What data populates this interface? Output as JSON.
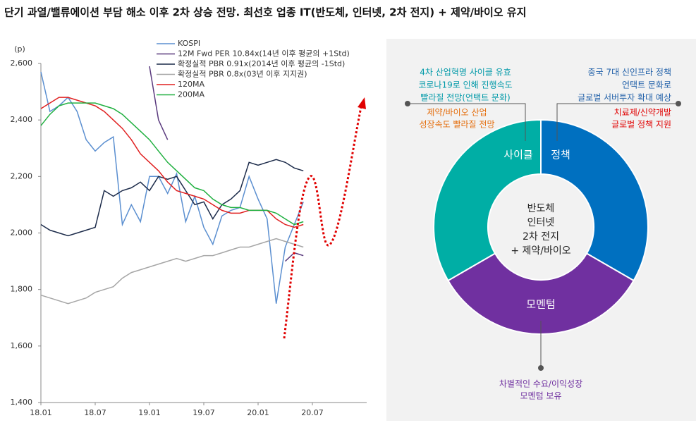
{
  "title": "단기 과열/밸류에이션 부담 해소 이후 2차 상승 전망. 최선호 업종 IT(반도체, 인터넷, 2차 전지) + 제약/바이오 유지",
  "chart_data": {
    "type": "line",
    "y_unit": "(p)",
    "x": [
      "18.01",
      "18.02",
      "18.03",
      "18.04",
      "18.05",
      "18.06",
      "18.07",
      "18.08",
      "18.09",
      "18.10",
      "18.11",
      "18.12",
      "19.01",
      "19.02",
      "19.03",
      "19.04",
      "19.05",
      "19.06",
      "19.07",
      "19.08",
      "19.09",
      "19.10",
      "19.11",
      "19.12",
      "20.01",
      "20.02",
      "20.03",
      "20.04",
      "20.05",
      "20.06",
      "20.07",
      "20.08",
      "20.09",
      "20.10",
      "20.11",
      "20.12",
      "21.01"
    ],
    "xticks": [
      "18.01",
      "18.07",
      "19.01",
      "19.07",
      "20.01",
      "20.07"
    ],
    "ylim": [
      1400,
      2600
    ],
    "yticks": [
      {
        "value": 1400,
        "label": "1,400"
      },
      {
        "value": 1600,
        "label": "1,600"
      },
      {
        "value": 1800,
        "label": "1,800"
      },
      {
        "value": 2000,
        "label": "2,000"
      },
      {
        "value": 2200,
        "label": "2,200"
      },
      {
        "value": 2400,
        "label": "2,400"
      },
      {
        "value": 2600,
        "label": "2,600"
      }
    ],
    "series": [
      {
        "name": "KOSPI",
        "color": "#5b8fd0",
        "values": [
          2570,
          2430,
          2450,
          2480,
          2430,
          2330,
          2290,
          2320,
          2340,
          2030,
          2100,
          2040,
          2200,
          2200,
          2140,
          2210,
          2040,
          2130,
          2020,
          1960,
          2060,
          2080,
          2090,
          2200,
          2120,
          2050,
          1750,
          1950,
          2030,
          2110,
          null,
          null,
          null,
          null,
          null,
          null,
          null
        ]
      },
      {
        "name": "12M Fwd PER 10.84x(14년 이후 평균의 +1Std)",
        "color": "#5a3a7e",
        "values": [
          null,
          null,
          null,
          null,
          null,
          null,
          null,
          null,
          null,
          null,
          null,
          null,
          2590,
          2400,
          2330,
          null,
          null,
          null,
          null,
          null,
          null,
          null,
          null,
          null,
          null,
          null,
          null,
          1900,
          1930,
          1920,
          null,
          null,
          null,
          null,
          null,
          null,
          null
        ]
      },
      {
        "name": "확정실적 PBR 0.91x(2014년 이후 평균의 -1Std)",
        "color": "#1c2b4a",
        "values": [
          2030,
          2010,
          2000,
          1990,
          2000,
          2010,
          2020,
          2150,
          2130,
          2150,
          2160,
          2180,
          2150,
          2200,
          2190,
          2200,
          2150,
          2100,
          2110,
          2050,
          2100,
          2120,
          2150,
          2250,
          2240,
          2250,
          2260,
          2250,
          2230,
          2220,
          null,
          null,
          null,
          null,
          null,
          null,
          null
        ]
      },
      {
        "name": "확정실적 PBR 0.8x(03년 이후 지지권)",
        "color": "#a6a6a6",
        "values": [
          1780,
          1770,
          1760,
          1750,
          1760,
          1770,
          1790,
          1800,
          1810,
          1840,
          1860,
          1870,
          1880,
          1890,
          1900,
          1910,
          1900,
          1910,
          1920,
          1920,
          1930,
          1940,
          1950,
          1950,
          1960,
          1970,
          1980,
          1970,
          1960,
          1950,
          null,
          null,
          null,
          null,
          null,
          null,
          null
        ]
      },
      {
        "name": "120MA",
        "color": "#e02020",
        "values": [
          2440,
          2460,
          2480,
          2480,
          2470,
          2460,
          2450,
          2430,
          2400,
          2370,
          2330,
          2280,
          2250,
          2220,
          2180,
          2150,
          2140,
          2130,
          2120,
          2100,
          2080,
          2070,
          2070,
          2080,
          2080,
          2080,
          2050,
          2030,
          2020,
          2030,
          null,
          null,
          null,
          null,
          null,
          null,
          null
        ]
      },
      {
        "name": "200MA",
        "color": "#20b040",
        "values": [
          2380,
          2420,
          2450,
          2460,
          2460,
          2460,
          2460,
          2450,
          2440,
          2420,
          2390,
          2360,
          2330,
          2290,
          2250,
          2220,
          2190,
          2160,
          2150,
          2120,
          2100,
          2090,
          2090,
          2080,
          2080,
          2080,
          2070,
          2050,
          2030,
          2040,
          null,
          null,
          null,
          null,
          null,
          null,
          null
        ]
      }
    ]
  },
  "diagram": {
    "segments": [
      "사이클",
      "정책",
      "모멘텀"
    ],
    "center": [
      "반도체",
      "인터넷",
      "2차 전지",
      "+ 제약/바이오"
    ],
    "cycle_note": [
      "4차 산업혁명 사이클 유효",
      "코로나19로 인해 진행속도",
      "빨라질 전망(언택트 문화)"
    ],
    "cycle_note2": [
      "제약/바이오 산업",
      "성장속도 빨라질 전망"
    ],
    "policy_note": [
      "중국 7대 신인프라 정책",
      "언택트 문화로",
      "글로벌 서버투자 확대 예상"
    ],
    "policy_note2": [
      "치료제/신약개발",
      "글로벌 정책 지원"
    ],
    "momentum_note": [
      "차별적인 수요/이익성장",
      "모멘텀 보유"
    ]
  }
}
